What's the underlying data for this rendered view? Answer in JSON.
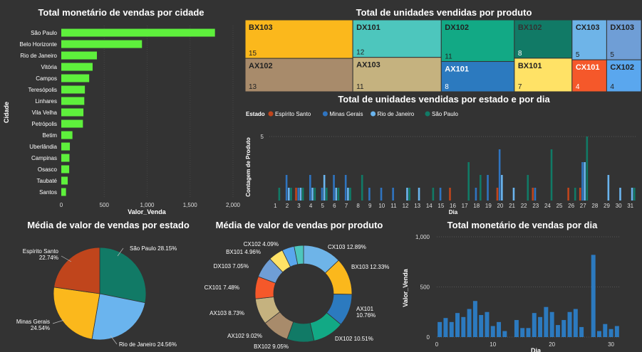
{
  "chart_data": [
    {
      "id": "city",
      "type": "bar",
      "orientation": "horizontal",
      "title": "Total monetário de vendas por cidade",
      "xlabel": "Valor_Venda",
      "ylabel": "Cidade",
      "xlim": [
        0,
        2000
      ],
      "xticks": [
        "0",
        "500",
        "1,000",
        "1,500",
        "2,000"
      ],
      "categories": [
        "São Paulo",
        "Belo Horizonte",
        "Rio de Janeiro",
        "Vitória",
        "Campos",
        "Teresópolis",
        "Linhares",
        "Vila Velha",
        "Petrópolis",
        "Betim",
        "Uberlândia",
        "Campinas",
        "Osasco",
        "Taubaté",
        "Santos"
      ],
      "values": [
        1790,
        940,
        415,
        365,
        325,
        275,
        268,
        258,
        252,
        130,
        100,
        95,
        92,
        75,
        55
      ],
      "color": "#5ef03c"
    },
    {
      "id": "product_units",
      "type": "treemap",
      "title": "Total de unidades vendidas por produto",
      "items": [
        {
          "name": "BX103",
          "value": 15,
          "color": "#fbb81c"
        },
        {
          "name": "AX102",
          "value": 13,
          "color": "#a88b6b"
        },
        {
          "name": "DX101",
          "value": 12,
          "color": "#4dc6bd"
        },
        {
          "name": "AX103",
          "value": 11,
          "color": "#c5b27f"
        },
        {
          "name": "DX102",
          "value": 11,
          "color": "#12a985"
        },
        {
          "name": "AX101",
          "value": 8,
          "color": "#2c7abf"
        },
        {
          "name": "BX102",
          "value": 8,
          "color": "#117a66"
        },
        {
          "name": "BX101",
          "value": 7,
          "color": "#ffe266"
        },
        {
          "name": "CX103",
          "value": 5,
          "color": "#6eb4e8"
        },
        {
          "name": "CX101",
          "value": 4,
          "color": "#f5582a"
        },
        {
          "name": "DX103",
          "value": 5,
          "color": "#6f9ed6"
        },
        {
          "name": "CX102",
          "value": 4,
          "color": "#5aa7ee"
        }
      ]
    },
    {
      "id": "state_day",
      "type": "bar",
      "title": "Total de unidades vendidas por estado e por dia",
      "legend_title": "Estado",
      "xlabel": "Dia",
      "ylabel": "Contagem de Produto",
      "ylim": [
        0,
        5
      ],
      "yticks": [
        "5"
      ],
      "categories": [
        "1",
        "2",
        "3",
        "4",
        "5",
        "6",
        "7",
        "8",
        "9",
        "10",
        "11",
        "12",
        "13",
        "14",
        "15",
        "16",
        "17",
        "18",
        "19",
        "20",
        "21",
        "22",
        "23",
        "24",
        "25",
        "26",
        "27",
        "28",
        "29",
        "30",
        "31"
      ],
      "series": [
        {
          "name": "Espírito Santo",
          "color": "#c0451c",
          "values": [
            0,
            0,
            1,
            0,
            0,
            0,
            0,
            0,
            0,
            0,
            0,
            0,
            0,
            0,
            0,
            1,
            0,
            0,
            0,
            1,
            0,
            0,
            1,
            0,
            0,
            1,
            1,
            0,
            0,
            0,
            0
          ]
        },
        {
          "name": "Minas Gerais",
          "color": "#2f74c0",
          "values": [
            0,
            2,
            1,
            2,
            1,
            2,
            2,
            0,
            1,
            1,
            1,
            0,
            0,
            0,
            1,
            0,
            0,
            1,
            2,
            4,
            0,
            0,
            1,
            0,
            0,
            0,
            3,
            0,
            0,
            0,
            0
          ]
        },
        {
          "name": "Rio de Janeiro",
          "color": "#6ab4ee",
          "values": [
            0,
            1,
            1,
            1,
            2,
            1,
            1,
            0,
            0,
            0,
            0,
            1,
            1,
            0,
            0,
            0,
            0,
            0,
            0,
            2,
            1,
            0,
            0,
            0,
            0,
            0,
            3,
            0,
            2,
            1,
            1
          ]
        },
        {
          "name": "São Paulo",
          "color": "#117a66",
          "values": [
            1,
            1,
            1,
            1,
            1,
            1,
            1,
            2,
            0,
            0,
            0,
            1,
            0,
            1,
            0,
            0,
            3,
            2,
            0,
            0,
            0,
            2,
            0,
            4,
            0,
            1,
            5,
            0,
            0,
            0,
            1
          ]
        }
      ]
    },
    {
      "id": "state_avg",
      "type": "pie",
      "title": "Média de valor de vendas por estado",
      "slices": [
        {
          "name": "São Paulo",
          "label": "São Paulo 28.15%",
          "value": 28.15,
          "color": "#117a66"
        },
        {
          "name": "Rio de Janeiro",
          "label": "Rio de Janeiro 24.56%",
          "value": 24.56,
          "color": "#6ab4ee"
        },
        {
          "name": "Minas Gerais",
          "label": "Minas Gerais 24.54%",
          "value": 24.54,
          "color": "#fbb81c"
        },
        {
          "name": "Espírito Santo",
          "label": "Espírito Santo 22.74%",
          "value": 22.74,
          "color": "#c0451c"
        }
      ]
    },
    {
      "id": "product_avg",
      "type": "donut",
      "title": "Média de valor de vendas por produto",
      "slices": [
        {
          "name": "CX103",
          "label": "CX103 12.89%",
          "value": 12.89,
          "color": "#6eb4e8"
        },
        {
          "name": "BX103",
          "label": "BX103 12.33%",
          "value": 12.33,
          "color": "#fbb81c"
        },
        {
          "name": "AX101",
          "label": "AX101 10.76%",
          "value": 10.76,
          "color": "#2c7abf"
        },
        {
          "name": "DX102",
          "label": "DX102 10.51%",
          "value": 10.51,
          "color": "#12a985"
        },
        {
          "name": "BX102",
          "label": "BX102 9.05%",
          "value": 9.05,
          "color": "#117a66"
        },
        {
          "name": "AX102",
          "label": "AX102 9.02%",
          "value": 9.02,
          "color": "#a88b6b"
        },
        {
          "name": "AX103",
          "label": "AX103 8.73%",
          "value": 8.73,
          "color": "#c5b27f"
        },
        {
          "name": "CX101",
          "label": "CX101 7.48%",
          "value": 7.48,
          "color": "#f5582a"
        },
        {
          "name": "DX103",
          "label": "DX103 7.05%",
          "value": 7.05,
          "color": "#6f9ed6"
        },
        {
          "name": "BX101",
          "label": "BX101 4.96%",
          "value": 4.96,
          "color": "#ffe266"
        },
        {
          "name": "CX102",
          "label": "CX102 4.09%",
          "value": 4.09,
          "color": "#5aa7ee"
        },
        {
          "name": "DX101",
          "label": "",
          "value": 3.13,
          "color": "#4dc6bd"
        }
      ]
    },
    {
      "id": "day_total",
      "type": "bar",
      "title": "Total monetário de vendas por dia",
      "xlabel": "Dia",
      "ylabel": "Valor_Venda",
      "ylim": [
        0,
        1000
      ],
      "yticks": [
        "0",
        "500",
        "1,000"
      ],
      "xticks": [
        "0",
        "10",
        "20",
        "30"
      ],
      "categories": [
        "1",
        "2",
        "3",
        "4",
        "5",
        "6",
        "7",
        "8",
        "9",
        "10",
        "11",
        "12",
        "13",
        "14",
        "15",
        "16",
        "17",
        "18",
        "19",
        "20",
        "21",
        "22",
        "23",
        "24",
        "25",
        "26",
        "27",
        "28",
        "29",
        "30",
        "31"
      ],
      "values": [
        150,
        190,
        150,
        240,
        200,
        280,
        360,
        220,
        250,
        110,
        150,
        60,
        0,
        170,
        90,
        90,
        240,
        200,
        300,
        250,
        120,
        170,
        250,
        280,
        100,
        0,
        820,
        60,
        130,
        80,
        110
      ],
      "color": "#2c7abf"
    }
  ]
}
